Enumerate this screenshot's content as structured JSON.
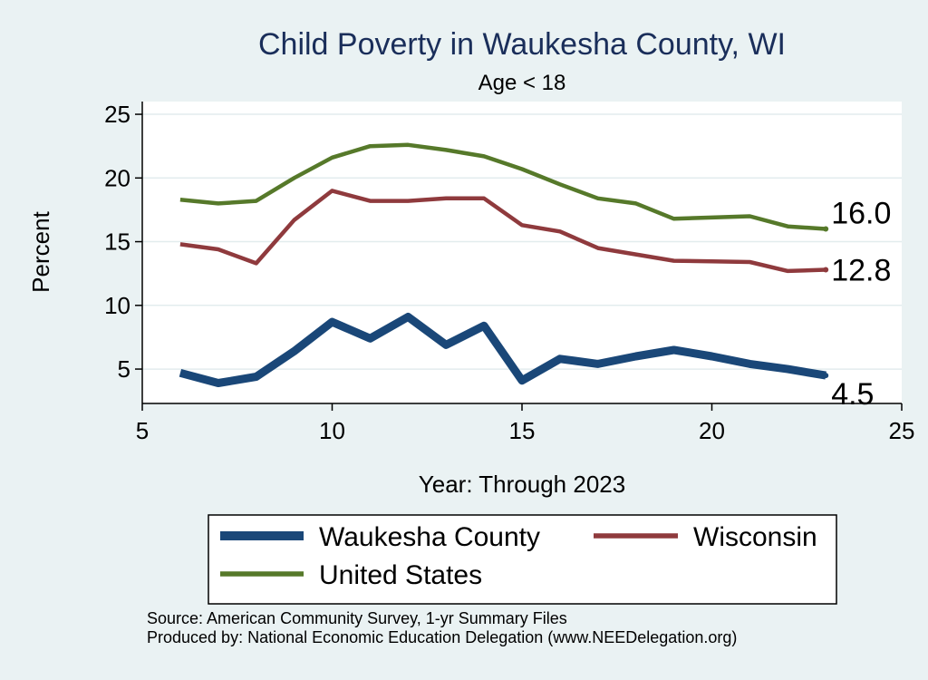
{
  "chart_data": {
    "type": "line",
    "title": "Child Poverty in Waukesha County, WI",
    "subtitle": "Age < 18",
    "xlabel": "Year: Through 2023",
    "ylabel": "Percent",
    "xlim": [
      5,
      25
    ],
    "ylim": [
      2.3,
      26
    ],
    "xticks": [
      5,
      10,
      15,
      20,
      25
    ],
    "yticks": [
      5,
      10,
      15,
      20,
      25
    ],
    "grid": true,
    "legend_position": "bottom",
    "series": [
      {
        "name": "Waukesha County",
        "color": "#1a4778",
        "x": [
          6,
          7,
          8,
          9,
          10,
          11,
          12,
          13,
          14,
          15,
          16,
          17,
          18,
          19,
          20,
          21,
          22,
          23
        ],
        "values": [
          4.7,
          3.9,
          4.4,
          6.4,
          8.7,
          7.4,
          9.1,
          6.9,
          8.4,
          4.1,
          5.8,
          5.4,
          6.0,
          6.5,
          6.0,
          5.4,
          5.0,
          4.5
        ],
        "end_label": "4.5"
      },
      {
        "name": "Wisconsin",
        "color": "#8f3a3d",
        "x": [
          6,
          7,
          8,
          9,
          10,
          11,
          12,
          13,
          14,
          15,
          16,
          17,
          18,
          19,
          20,
          21,
          22,
          23
        ],
        "values": [
          14.8,
          14.4,
          13.3,
          16.7,
          19.0,
          18.2,
          18.2,
          18.4,
          18.4,
          16.3,
          15.8,
          14.5,
          14.0,
          13.5,
          13.45,
          13.4,
          12.7,
          12.8
        ],
        "end_label": "12.8"
      },
      {
        "name": "United States",
        "color": "#56792a",
        "x": [
          6,
          7,
          8,
          9,
          10,
          11,
          12,
          13,
          14,
          15,
          16,
          17,
          18,
          19,
          20,
          21,
          22,
          23
        ],
        "values": [
          18.3,
          18.0,
          18.2,
          20.0,
          21.6,
          22.5,
          22.6,
          22.2,
          21.7,
          20.7,
          19.5,
          18.4,
          18.0,
          16.8,
          16.9,
          17.0,
          16.2,
          16.0
        ],
        "end_label": "16.0"
      }
    ]
  },
  "notes": {
    "source": "Source: American Community Survey, 1-yr Summary Files",
    "produced": "Produced by: National Economic Education Delegation (www.NEEDelegation.org)"
  }
}
